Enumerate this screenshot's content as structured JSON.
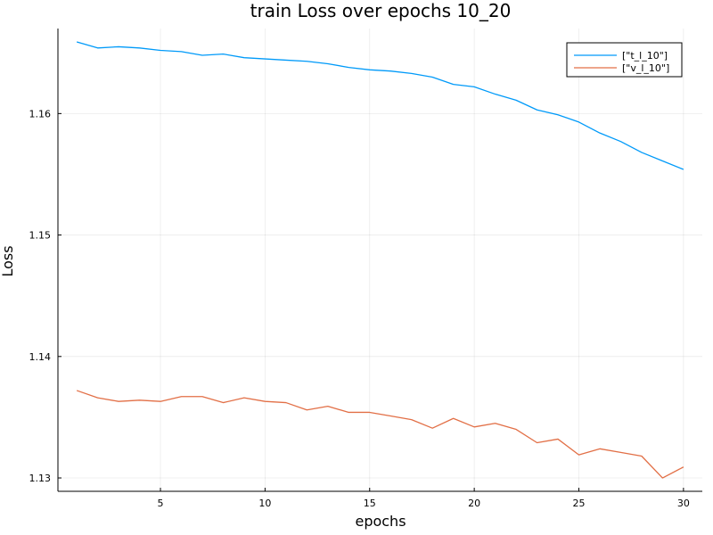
{
  "chart_data": {
    "type": "line",
    "title": "train Loss over epochs 10_20",
    "xlabel": "epochs",
    "ylabel": "Loss",
    "xlim": [
      0.1,
      30.9
    ],
    "ylim": [
      1.1289,
      1.167
    ],
    "xticks": [
      5,
      10,
      15,
      20,
      25,
      30
    ],
    "yticks": [
      1.13,
      1.14,
      1.15,
      1.16
    ],
    "xtick_labels": [
      "5",
      "10",
      "15",
      "20",
      "25",
      "30"
    ],
    "ytick_labels": [
      "1.13",
      "1.14",
      "1.15",
      "1.16"
    ],
    "grid": true,
    "legend_position": "top-right",
    "x": [
      1,
      2,
      3,
      4,
      5,
      6,
      7,
      8,
      9,
      10,
      11,
      12,
      13,
      14,
      15,
      16,
      17,
      18,
      19,
      20,
      21,
      22,
      23,
      24,
      25,
      26,
      27,
      28,
      29,
      30
    ],
    "series": [
      {
        "name": "[\"t_l_10\"]",
        "color": "#009af9",
        "values": [
          1.1659,
          1.1654,
          1.1655,
          1.1654,
          1.1652,
          1.1651,
          1.1648,
          1.1649,
          1.1646,
          1.1645,
          1.1644,
          1.1643,
          1.1641,
          1.1638,
          1.1636,
          1.1635,
          1.1633,
          1.163,
          1.1624,
          1.1622,
          1.1616,
          1.1611,
          1.1603,
          1.1599,
          1.1593,
          1.1584,
          1.1577,
          1.1568,
          1.1561,
          1.1554
        ]
      },
      {
        "name": "[\"v_l_10\"]",
        "color": "#e26f46",
        "values": [
          1.1372,
          1.1366,
          1.1363,
          1.1364,
          1.1363,
          1.1367,
          1.1367,
          1.1362,
          1.1366,
          1.1363,
          1.1362,
          1.1356,
          1.1359,
          1.1354,
          1.1354,
          1.1351,
          1.1348,
          1.1341,
          1.1349,
          1.1342,
          1.1345,
          1.134,
          1.1329,
          1.1332,
          1.1319,
          1.1324,
          1.1321,
          1.1318,
          1.13,
          1.1309
        ]
      }
    ]
  }
}
